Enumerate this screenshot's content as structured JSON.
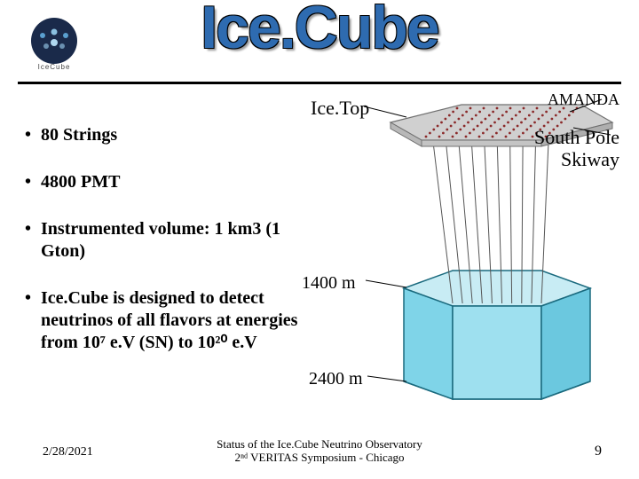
{
  "header": {
    "title": "Ice.Cube",
    "logo_caption": "IceCube"
  },
  "bullets": [
    "80 Strings",
    "4800 PMT",
    "Instrumented volume: 1 km3 (1 Gton)",
    "Ice.Cube is designed to detect neutrinos of all flavors at energies from 10⁷ e.V (SN) to 10²⁰ e.V"
  ],
  "diagram": {
    "labels": {
      "icetop": "Ice.Top",
      "amanda": "AMANDA",
      "south_pole": "South Pole\nSkiway",
      "depth1": "1400 m",
      "depth2": "2400 m"
    },
    "colors": {
      "top_fill": "#d0d0d0",
      "top_stroke": "#707070",
      "cube_fill": "#7fd4e8",
      "cube_stroke": "#1a6a7e",
      "cube_light": "#c8ecf4",
      "string_color": "#555555",
      "dot_color": "#8b2a2a"
    },
    "dot_rows": 9,
    "dot_cols": 10,
    "string_count": 10
  },
  "footer": {
    "date": "2/28/2021",
    "center_line1": "Status of the Ice.Cube Neutrino Observatory",
    "center_line2": "2ⁿᵈ VERITAS Symposium - Chicago",
    "page": "9"
  }
}
